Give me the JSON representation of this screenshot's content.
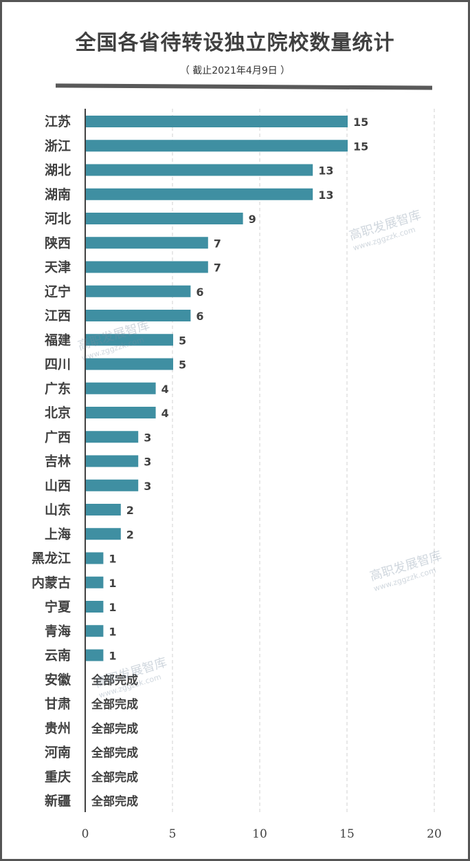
{
  "chart_data": {
    "type": "bar",
    "orientation": "horizontal",
    "title": "全国各省待转设独立院校数量统计",
    "subtitle": "（ 截止2021年4月9日 ）",
    "categories": [
      "江苏",
      "浙江",
      "湖北",
      "湖南",
      "河北",
      "陕西",
      "天津",
      "辽宁",
      "江西",
      "福建",
      "四川",
      "广东",
      "北京",
      "广西",
      "吉林",
      "山西",
      "山东",
      "上海",
      "黑龙江",
      "内蒙古",
      "宁夏",
      "青海",
      "云南",
      "安徽",
      "甘肃",
      "贵州",
      "河南",
      "重庆",
      "新疆"
    ],
    "values": [
      15,
      15,
      13,
      13,
      9,
      7,
      7,
      6,
      6,
      5,
      5,
      4,
      4,
      3,
      3,
      3,
      2,
      2,
      1,
      1,
      1,
      1,
      1,
      0,
      0,
      0,
      0,
      0,
      0
    ],
    "labels": [
      "15",
      "15",
      "13",
      "13",
      "9",
      "7",
      "7",
      "6",
      "6",
      "5",
      "5",
      "4",
      "4",
      "3",
      "3",
      "3",
      "2",
      "2",
      "1",
      "1",
      "1",
      "1",
      "1",
      "全部完成",
      "全部完成",
      "全部完成",
      "全部完成",
      "全部完成",
      "全部完成"
    ],
    "xlim": [
      0,
      20
    ],
    "xticks": [
      "0",
      "5",
      "10",
      "15",
      "20"
    ],
    "grid": true,
    "bar_color": "#3f8fa2"
  },
  "watermark": {
    "name": "高职发展智库",
    "url": "www.zggzzk.com"
  }
}
